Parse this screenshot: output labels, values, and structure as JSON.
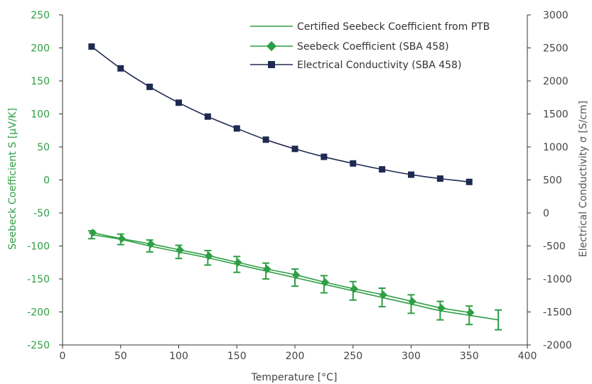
{
  "colors": {
    "green": "#2e9e44",
    "navy": "#1f2a52",
    "axis_text": "#444444",
    "ylabel_left": "#2e9e44",
    "ylabel_right": "#555555"
  },
  "chart_data": {
    "type": "line",
    "xlabel": "Temperature [°C]",
    "ylabel": "Seebeck Coefficient S [µV/K]",
    "y2label": "Electrical Conductivity σ [S/cm]",
    "xlim": [
      0,
      400
    ],
    "ylim": [
      -250,
      250
    ],
    "y2lim": [
      -2000,
      3000
    ],
    "x_ticks": [
      0,
      50,
      100,
      150,
      200,
      250,
      300,
      350,
      400
    ],
    "y_ticks": [
      250,
      200,
      150,
      100,
      50,
      0,
      -50,
      -100,
      -150,
      -200,
      -250
    ],
    "y2_ticks": [
      3000,
      2500,
      2000,
      1500,
      1000,
      500,
      0,
      -500,
      -1000,
      -1500,
      -2000
    ],
    "grid": false,
    "legend_position": "top-right",
    "series": [
      {
        "name": "Certified Seebeck Coefficient from PTB",
        "axis": "left",
        "style": "line",
        "color": "#2e9e44",
        "x": [
          25,
          50,
          75,
          100,
          125,
          150,
          175,
          200,
          225,
          250,
          275,
          300,
          325,
          350,
          375
        ],
        "y": [
          -83,
          -90,
          -100,
          -109,
          -118,
          -128,
          -138,
          -148,
          -158,
          -168,
          -178,
          -188,
          -198,
          -205,
          -212
        ],
        "error": [
          6,
          8,
          9,
          10,
          11,
          12,
          12,
          13,
          13,
          14,
          14,
          14,
          14,
          14,
          15
        ]
      },
      {
        "name": "Seebeck Coefficient (SBA 458)",
        "axis": "left",
        "style": "line-diamond",
        "color": "#2e9e44",
        "x": [
          26,
          51,
          76,
          101,
          126,
          151,
          176,
          201,
          226,
          251,
          276,
          301,
          326,
          351
        ],
        "y": [
          -80,
          -89,
          -97,
          -106,
          -115,
          -125,
          -135,
          -144,
          -155,
          -165,
          -174,
          -184,
          -194,
          -201
        ]
      },
      {
        "name": "Electrical Conductivity (SBA 458)",
        "axis": "right",
        "style": "line-square",
        "color": "#1f2a52",
        "x": [
          25,
          50,
          75,
          100,
          125,
          150,
          175,
          200,
          225,
          250,
          275,
          300,
          325,
          350
        ],
        "y": [
          2520,
          2190,
          1910,
          1670,
          1460,
          1280,
          1110,
          970,
          850,
          750,
          660,
          580,
          520,
          470
        ]
      }
    ]
  }
}
